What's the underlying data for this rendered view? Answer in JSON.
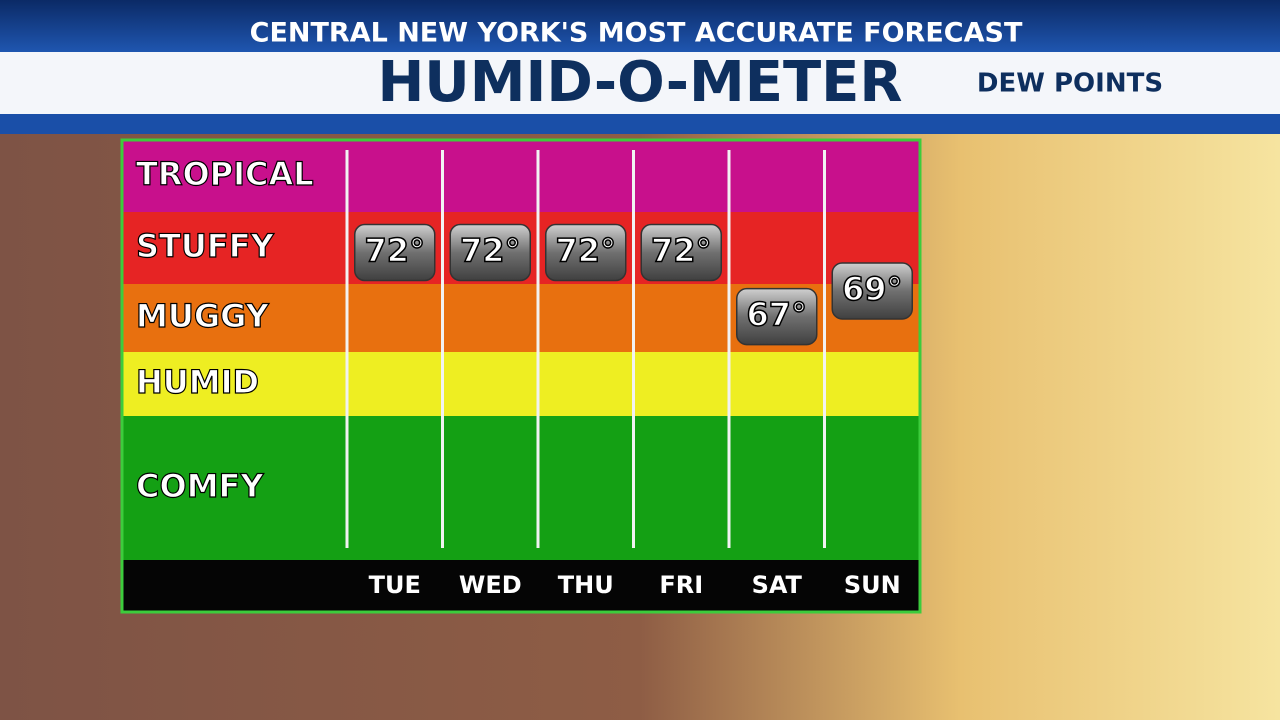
{
  "header": {
    "tagline": "CENTRAL NEW YORK'S MOST ACCURATE FORECAST",
    "title": "HUMID-O-METER",
    "subtitle": "DEW POINTS"
  },
  "chart_data": {
    "type": "meter",
    "zones": [
      "TROPICAL",
      "STUFFY",
      "MUGGY",
      "HUMID",
      "COMFY"
    ],
    "categories": [
      "TUE",
      "WED",
      "THU",
      "FRI",
      "SAT",
      "SUN"
    ],
    "values": [
      72,
      72,
      72,
      72,
      67,
      69
    ],
    "value_labels": [
      "72°",
      "72°",
      "72°",
      "72°",
      "67°",
      "69°"
    ],
    "ylim": [
      48,
      80
    ]
  }
}
